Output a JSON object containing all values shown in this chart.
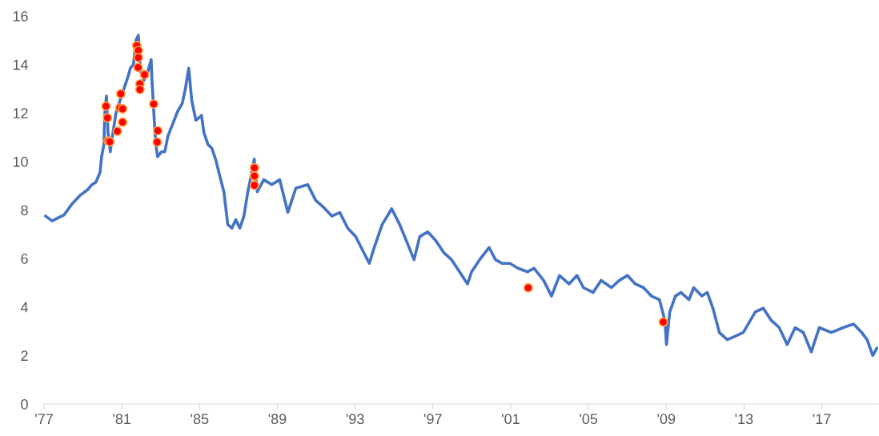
{
  "chart_data": {
    "type": "line",
    "xlim": [
      1977,
      2019.9
    ],
    "xticks": [
      {
        "value": 1977,
        "label": "'77"
      },
      {
        "value": 1981,
        "label": "'81"
      },
      {
        "value": 1985,
        "label": "'85"
      },
      {
        "value": 1989,
        "label": "'89"
      },
      {
        "value": 1993,
        "label": "'93"
      },
      {
        "value": 1997,
        "label": "'97"
      },
      {
        "value": 2001,
        "label": "'01"
      },
      {
        "value": 2005,
        "label": "'05"
      },
      {
        "value": 2009,
        "label": "'09"
      },
      {
        "value": 2013,
        "label": "'13"
      },
      {
        "value": 2017,
        "label": "'17"
      }
    ],
    "ylim": [
      0,
      16
    ],
    "yticks": [
      0,
      2,
      4,
      6,
      8,
      10,
      12,
      14,
      16
    ],
    "grid": false,
    "legend": false,
    "series": [
      {
        "color": "#4472c4",
        "x": [
          1977.08,
          1977.41,
          1978.03,
          1978.44,
          1978.85,
          1979.26,
          1979.47,
          1979.67,
          1979.88,
          1979.96,
          1980.08,
          1980.12,
          1980.21,
          1980.29,
          1980.41,
          1980.49,
          1980.7,
          1980.9,
          1981.11,
          1981.32,
          1981.44,
          1981.6,
          1981.73,
          1981.85,
          1981.97,
          1982.14,
          1982.34,
          1982.51,
          1982.55,
          1982.67,
          1982.75,
          1982.84,
          1983.04,
          1983.21,
          1983.37,
          1983.62,
          1983.86,
          1984.11,
          1984.27,
          1984.44,
          1984.6,
          1984.81,
          1985.1,
          1985.22,
          1985.43,
          1985.63,
          1985.84,
          1986.04,
          1986.25,
          1986.45,
          1986.66,
          1986.86,
          1987.07,
          1987.28,
          1987.48,
          1987.65,
          1987.81,
          1987.97,
          1988.3,
          1988.71,
          1989.12,
          1989.54,
          1989.95,
          1990.56,
          1990.97,
          1991.39,
          1991.8,
          1992.21,
          1992.62,
          1993.03,
          1993.44,
          1993.73,
          1993.98,
          1994.39,
          1994.88,
          1995.29,
          1995.7,
          1996.03,
          1996.32,
          1996.73,
          1997.14,
          1997.55,
          1997.96,
          1998.37,
          1998.78,
          1998.99,
          1999.4,
          1999.89,
          2000.22,
          2000.55,
          2000.96,
          2001.37,
          2001.86,
          2002.2,
          2002.69,
          2003.1,
          2003.51,
          2004.0,
          2004.41,
          2004.74,
          2005.24,
          2005.65,
          2006.18,
          2006.59,
          2007.0,
          2007.41,
          2007.83,
          2008.24,
          2008.65,
          2008.93,
          2009.01,
          2009.18,
          2009.47,
          2009.76,
          2010.17,
          2010.41,
          2010.83,
          2011.11,
          2011.4,
          2011.73,
          2012.14,
          2012.56,
          2012.96,
          2013.58,
          2013.99,
          2014.4,
          2014.81,
          2015.22,
          2015.63,
          2016.05,
          2016.46,
          2016.87,
          2017.49,
          2018.1,
          2018.63,
          2019.05,
          2019.33,
          2019.62,
          2019.83
        ],
        "values": [
          7.75,
          7.55,
          7.8,
          8.25,
          8.6,
          8.85,
          9.05,
          9.15,
          9.55,
          10.2,
          10.7,
          11.9,
          12.7,
          11.2,
          10.4,
          10.9,
          12.0,
          12.5,
          13.0,
          13.5,
          13.85,
          14.0,
          15.0,
          15.2,
          13.7,
          13.35,
          13.7,
          14.2,
          13.35,
          11.7,
          10.7,
          10.2,
          10.4,
          10.4,
          11.05,
          11.55,
          12.05,
          12.4,
          13.0,
          13.85,
          12.5,
          11.7,
          11.9,
          11.2,
          10.7,
          10.55,
          10.05,
          9.4,
          8.75,
          7.4,
          7.25,
          7.6,
          7.25,
          7.75,
          8.75,
          9.4,
          10.1,
          8.75,
          9.25,
          9.05,
          9.25,
          7.9,
          8.9,
          9.05,
          8.4,
          8.1,
          7.75,
          7.9,
          7.25,
          6.9,
          6.25,
          5.8,
          6.45,
          7.4,
          8.05,
          7.4,
          6.6,
          5.95,
          6.9,
          7.1,
          6.75,
          6.25,
          5.95,
          5.45,
          4.95,
          5.45,
          5.95,
          6.45,
          5.95,
          5.8,
          5.8,
          5.6,
          5.45,
          5.6,
          5.1,
          4.45,
          5.3,
          4.95,
          5.3,
          4.8,
          4.6,
          5.1,
          4.8,
          5.1,
          5.3,
          4.95,
          4.8,
          4.45,
          4.3,
          3.45,
          2.45,
          3.8,
          4.45,
          4.6,
          4.3,
          4.8,
          4.45,
          4.6,
          3.95,
          2.95,
          2.65,
          2.8,
          2.95,
          3.8,
          3.95,
          3.45,
          3.15,
          2.45,
          3.15,
          2.95,
          2.15,
          3.15,
          2.95,
          3.15,
          3.3,
          2.95,
          2.65,
          2.0,
          2.3
        ]
      },
      {
        "type": "scatter",
        "color": "#ff0000",
        "marker": "circle",
        "x": [
          1980.19,
          1980.26,
          1980.29,
          1980.38,
          1980.77,
          1980.9,
          1980.95,
          1981.04,
          1981.04,
          1981.77,
          1981.85,
          1981.85,
          1981.84,
          1981.93,
          1981.93,
          1982.17,
          1982.64,
          1982.85,
          1982.82,
          1987.82,
          1987.82,
          1987.82,
          2001.9,
          2008.85
        ],
        "values": [
          12.28,
          11.8,
          10.85,
          10.81,
          11.25,
          12.21,
          12.79,
          12.17,
          11.62,
          14.78,
          14.58,
          14.29,
          13.88,
          13.2,
          12.97,
          13.58,
          12.37,
          11.27,
          10.8,
          9.74,
          9.4,
          9.02,
          4.79,
          3.38
        ]
      }
    ]
  }
}
